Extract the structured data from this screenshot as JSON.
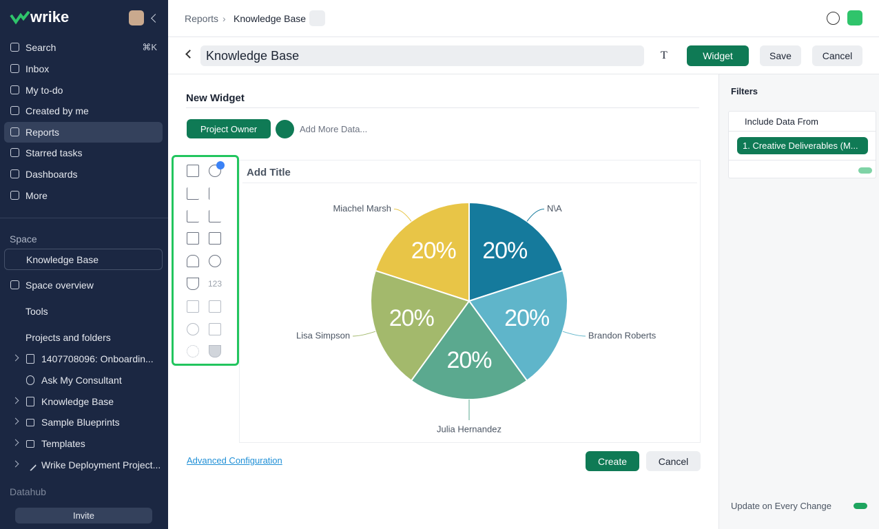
{
  "sidebar": {
    "logo": "wrike",
    "nav": [
      {
        "label": "Search",
        "shortcut": "⌘K"
      },
      {
        "label": "Inbox"
      },
      {
        "label": "My to-do"
      },
      {
        "label": "Created by me"
      },
      {
        "label": "Reports"
      },
      {
        "label": "Starred tasks"
      },
      {
        "label": "Dashboards"
      },
      {
        "label": "More"
      }
    ],
    "space_label": "Space",
    "space_name": "Knowledge Base",
    "space_items": [
      "Space overview",
      "Tools",
      "Projects and folders"
    ],
    "tree": [
      "1407708096: Onboardin...",
      "Ask My Consultant",
      "Knowledge Base",
      "Sample Blueprints",
      "Templates",
      "Wrike Deployment Project..."
    ],
    "datahub": "Datahub",
    "invite": "Invite"
  },
  "breadcrumb": [
    "Reports",
    "Knowledge Base"
  ],
  "toolbar": {
    "title": "Knowledge Base",
    "widget_button": "Widget",
    "save": "Save",
    "cancel": "Cancel"
  },
  "editor": {
    "heading": "New Widget",
    "data_chip": "Project Owner",
    "add_more": "Add More Data...",
    "chart_type_number": "123",
    "widget_title": "Add Title",
    "advanced": "Advanced Configuration",
    "create": "Create",
    "cancel": "Cancel"
  },
  "chart_data": {
    "type": "pie",
    "categories": [
      "N\\A",
      "Brandon Roberts",
      "Julia Hernandez",
      "Lisa Simpson",
      "Miachel Marsh"
    ],
    "values": [
      20,
      20,
      20,
      20,
      20
    ],
    "value_labels": [
      "20%",
      "20%",
      "20%",
      "20%",
      "20%"
    ],
    "colors": [
      "#157a9c",
      "#5fb5ca",
      "#5ba98f",
      "#a3b96c",
      "#e8c547"
    ]
  },
  "filters": {
    "title": "Filters",
    "group": "Include Data From",
    "chip": "1. Creative Deliverables (M...",
    "update": "Update on Every Change"
  }
}
